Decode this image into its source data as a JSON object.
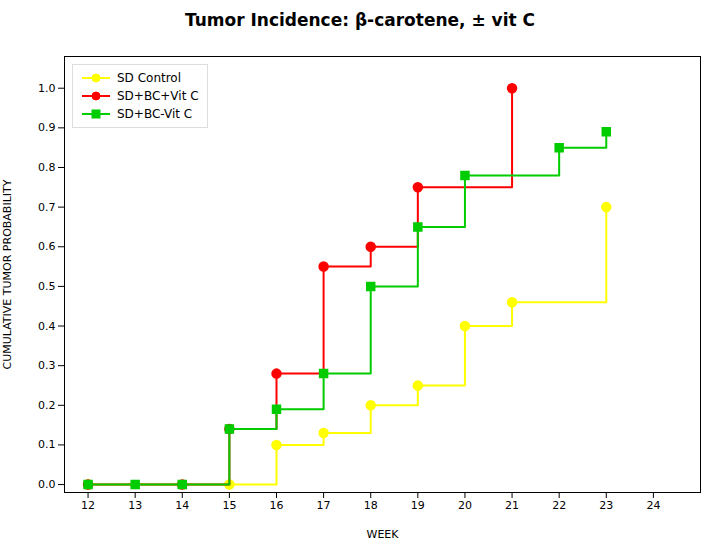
{
  "chart_data": {
    "type": "step",
    "title": "Tumor Incidence: β-carotene, ± vit C",
    "x_label": "WEEK",
    "y_label": "CUMULATIVE TUMOR PROBABILITY",
    "xlim": [
      11.5,
      25
    ],
    "ylim": [
      -0.02,
      1.08
    ],
    "xticks": [
      12,
      13,
      14,
      15,
      16,
      17,
      18,
      19,
      20,
      21,
      22,
      23,
      24
    ],
    "yticks": [
      {
        "value": 0.0,
        "label": "0.0"
      },
      0.1,
      0.2,
      0.3,
      0.4,
      0.5,
      0.6,
      0.7,
      0.8,
      0.9,
      {
        "value": 1.0,
        "label": "1.0"
      }
    ],
    "grid": false,
    "legend": "upper left",
    "series": [
      {
        "name": "SD Control",
        "color": "#ffff00",
        "marker": "circle",
        "x": [
          12,
          15,
          16,
          17,
          18,
          19,
          20,
          21,
          23
        ],
        "values": [
          0.0,
          0.0,
          0.1,
          0.13,
          0.2,
          0.25,
          0.4,
          0.46,
          0.7
        ]
      },
      {
        "name": "SD+BC+Vit C",
        "color": "#ff0000",
        "marker": "circle",
        "x": [
          12,
          14,
          15,
          16,
          17,
          18,
          19,
          21
        ],
        "values": [
          0.0,
          0.0,
          0.14,
          0.28,
          0.55,
          0.6,
          0.75,
          1.0
        ]
      },
      {
        "name": "SD+BC-Vit C",
        "color": "#00cc00",
        "marker": "square",
        "x": [
          12,
          13,
          14,
          15,
          16,
          17,
          18,
          19,
          20,
          22,
          23
        ],
        "values": [
          0.0,
          0.0,
          0.0,
          0.14,
          0.19,
          0.28,
          0.5,
          0.65,
          0.78,
          0.85,
          0.89
        ]
      }
    ]
  }
}
